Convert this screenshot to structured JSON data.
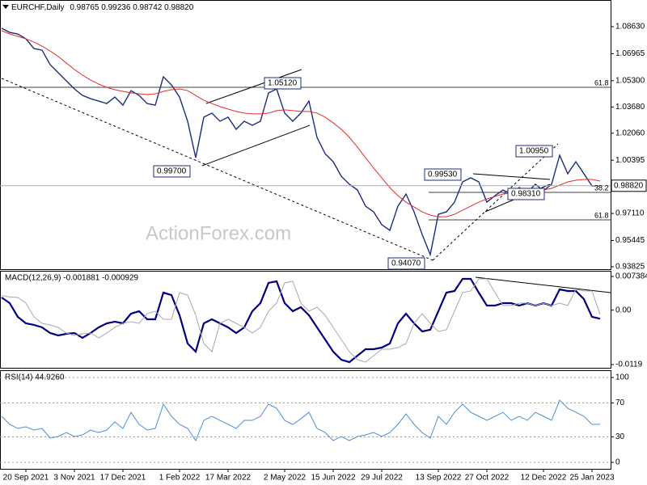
{
  "chart_data": [
    {
      "type": "line",
      "title": "EURCHF,Daily",
      "subtitle": "0.98765 0.99236 0.98742 0.98820",
      "watermark": "ActionForex.com",
      "categories": [
        null,
        null,
        null,
        "20 Sep 2021",
        null,
        null,
        null,
        null,
        null,
        "3 Nov 2021",
        null,
        null,
        null,
        null,
        null,
        "17 Dec 2021",
        null,
        null,
        null,
        null,
        null,
        null,
        "1 Feb 2022",
        null,
        null,
        null,
        null,
        null,
        "17 Mar 2022",
        null,
        null,
        null,
        null,
        null,
        null,
        "2 May 2022",
        null,
        null,
        null,
        null,
        null,
        "15 Jun 2022",
        null,
        null,
        null,
        null,
        null,
        "29 Jul 2022",
        null,
        null,
        null,
        null,
        null,
        null,
        "13 Sep 2022",
        null,
        null,
        null,
        null,
        null,
        "27 Oct 2022",
        null,
        null,
        null,
        null,
        null,
        null,
        "12 Dec 2022",
        null,
        null,
        null,
        null,
        null,
        "25 Jan 2023",
        null
      ],
      "series": [
        {
          "color": "#1c2d7c",
          "values": [
            1.0853,
            1.0828,
            1.0818,
            1.0788,
            1.0728,
            1.0718,
            1.0629,
            1.0579,
            1.0529,
            1.0479,
            1.0439,
            1.0419,
            1.0404,
            1.0389,
            1.0429,
            1.0379,
            1.0468,
            1.0439,
            1.0389,
            1.0379,
            1.0554,
            1.0504,
            1.0429,
            1.028,
            1.0055,
            1.0305,
            1.033,
            1.028,
            1.0305,
            1.023,
            1.028,
            1.0255,
            1.028,
            1.0454,
            1.0479,
            1.033,
            1.028,
            1.033,
            1.0404,
            1.018,
            1.008,
            1.003,
            0.9941,
            0.9891,
            0.9856,
            0.9756,
            0.9721,
            0.9642,
            0.9607,
            0.9756,
            0.9831,
            0.9721,
            0.9582,
            0.9457,
            0.9706,
            0.9721,
            0.9781,
            0.9906,
            0.9931,
            0.9906,
            0.9781,
            0.9821,
            0.9856,
            0.9831,
            0.9871,
            0.9841,
            0.9891,
            0.9851,
            0.9891,
            1.007,
            0.9956,
            1.003,
            0.9956,
            0.9881,
            0.9882
          ]
        },
        {
          "color": "#e0302a",
          "values": [
            1.0838,
            1.0818,
            1.0803,
            1.0788,
            1.0768,
            1.0743,
            1.0713,
            1.0679,
            1.0639,
            1.0599,
            1.0564,
            1.0534,
            1.0509,
            1.0489,
            1.0474,
            1.0464,
            1.0454,
            1.0449,
            1.0444,
            1.0449,
            1.0464,
            1.0474,
            1.0479,
            1.0469,
            1.0439,
            1.0409,
            1.0389,
            1.037,
            1.0355,
            1.034,
            1.033,
            1.0325,
            1.0325,
            1.033,
            1.0345,
            1.035,
            1.0345,
            1.034,
            1.034,
            1.033,
            1.0305,
            1.027,
            1.023,
            1.018,
            1.012,
            1.0055,
            0.9991,
            0.9931,
            0.9871,
            0.9821,
            0.9781,
            0.9751,
            0.9721,
            0.9701,
            0.9691,
            0.9691,
            0.9706,
            0.9731,
            0.9756,
            0.9781,
            0.9801,
            0.9816,
            0.9831,
            0.9836,
            0.9841,
            0.9846,
            0.9851,
            0.9856,
            0.9866,
            0.9886,
            0.9906,
            0.9916,
            0.9921,
            0.9921,
            0.9911
          ]
        }
      ],
      "ylim": [
        0.93675,
        1.10275
      ],
      "yticks": [
        {
          "value": 1.0863,
          "label": "1.08630"
        },
        {
          "value": 1.06965,
          "label": "1.06965"
        },
        {
          "value": 1.053,
          "label": "1.05300"
        },
        {
          "value": 1.0368,
          "label": "1.03680"
        },
        {
          "value": 1.0206,
          "label": "1.02060"
        },
        {
          "value": 1.00395,
          "label": "1.00395"
        },
        {
          "value": 0.9711,
          "label": "0.97110"
        },
        {
          "value": 0.95445,
          "label": "0.95445"
        },
        {
          "value": 0.93825,
          "label": "0.93825"
        }
      ],
      "current": {
        "value": 0.9882,
        "label": "0.98820"
      },
      "annotations": [
        "1.05120",
        "0.99700",
        "0.99530",
        "1.00950",
        "0.94070",
        "0.98310",
        "61.8",
        "38.2",
        "61.8"
      ],
      "grid": false
    },
    {
      "type": "line",
      "title": "MACD(12,26,9) -0.001881 -0.000929",
      "series": [
        {
          "color": "#00007f",
          "values": [
            0.00278,
            0.00154,
            -0.00146,
            -0.00288,
            -0.00323,
            -0.00376,
            -0.005,
            -0.00553,
            -0.00518,
            -0.005,
            -0.00606,
            -0.005,
            -0.00376,
            -0.00288,
            -0.00252,
            -0.00288,
            -0.00076,
            -0.00023,
            -0.00199,
            -0.00199,
            0.00384,
            0.00331,
            -0.00111,
            -0.0073,
            -0.00907,
            -0.00288,
            -0.00199,
            -0.00288,
            -0.00376,
            -0.005,
            -0.00376,
            -0.00023,
            0.00154,
            0.00597,
            0.00632,
            0.00154,
            -0.00023,
            0.00066,
            -0.00111,
            -0.00376,
            -0.00642,
            -0.00907,
            -0.01084,
            -0.01137,
            -0.00995,
            -0.00854,
            -0.00854,
            -0.00819,
            -0.0073,
            -0.00288,
            -0.00076,
            -0.00288,
            -0.00465,
            -0.00429,
            -0.00023,
            0.00384,
            0.0042,
            0.00685,
            0.00685,
            0.00384,
            0.00101,
            0.00101,
            0.00154,
            0.00154,
            0.00101,
            0.00154,
            0.00101,
            0.00154,
            0.00101,
            0.00455,
            0.0042,
            0.0042,
            0.00243,
            -0.00146,
            -0.00188
          ]
        },
        {
          "color": "#a8a8a8",
          "values": [
            0.0032,
            0.0029,
            0.00278,
            0.00154,
            -0.00146,
            -0.00288,
            -0.00323,
            -0.00376,
            -0.005,
            -0.00553,
            -0.00518,
            -0.005,
            -0.00606,
            -0.005,
            -0.00376,
            -0.00288,
            -0.00252,
            -0.00288,
            -0.00076,
            -0.00023,
            -0.00199,
            -0.00199,
            0.00384,
            0.00331,
            -0.00111,
            -0.0073,
            -0.00907,
            -0.00288,
            -0.00199,
            -0.00288,
            -0.00376,
            -0.005,
            -0.00376,
            -0.00023,
            0.00154,
            0.00597,
            0.00632,
            0.00154,
            -0.00023,
            0.00066,
            -0.00111,
            -0.00376,
            -0.00642,
            -0.00907,
            -0.01084,
            -0.01137,
            -0.00995,
            -0.00854,
            -0.00854,
            -0.00819,
            -0.0073,
            -0.00288,
            -0.00076,
            -0.00288,
            -0.00465,
            -0.00429,
            -0.00023,
            0.00384,
            0.0042,
            0.00685,
            0.00685,
            0.00384,
            0.00101,
            0.00101,
            0.00154,
            0.00154,
            0.00101,
            0.00154,
            0.00101,
            0.00154,
            0.00101,
            0.00455,
            0.0042,
            0.0042,
            -0.00093
          ]
        }
      ],
      "ylim": [
        -0.01261,
        0.00862
      ],
      "yticks": [
        0.007384,
        {
          "value": 0,
          "label": "0.00"
        },
        -0.0119
      ],
      "grid": false
    },
    {
      "type": "line",
      "title": "RSI(14) 44.9260",
      "series": [
        {
          "color": "#4a8fd8",
          "values": [
            54.3,
            44.8,
            40,
            41.9,
            38.1,
            40,
            28.6,
            30.5,
            35.2,
            30.5,
            32.4,
            38.1,
            35.2,
            38.1,
            47.6,
            40,
            59,
            44.8,
            38.1,
            40,
            68.6,
            54.3,
            44.8,
            40,
            25.7,
            49.5,
            54.3,
            49.5,
            44.8,
            40,
            49.5,
            49.5,
            54.3,
            68.6,
            63.8,
            49.5,
            44.8,
            51.4,
            59,
            40,
            35.2,
            25.7,
            30.5,
            25.7,
            30.5,
            32.4,
            35.2,
            30.5,
            35.2,
            44.8,
            57.1,
            44.8,
            35.2,
            28.6,
            54.3,
            44.8,
            59,
            68.6,
            59,
            54.3,
            49.5,
            54.3,
            59,
            49.5,
            54.3,
            49.5,
            59,
            54.3,
            49.5,
            73.3,
            63.8,
            59,
            54.3,
            44.8,
            44.9
          ]
        }
      ],
      "ylim": [
        -7.6,
        108.6
      ],
      "yticks": [
        100,
        70,
        30,
        0
      ],
      "grid": true
    }
  ]
}
